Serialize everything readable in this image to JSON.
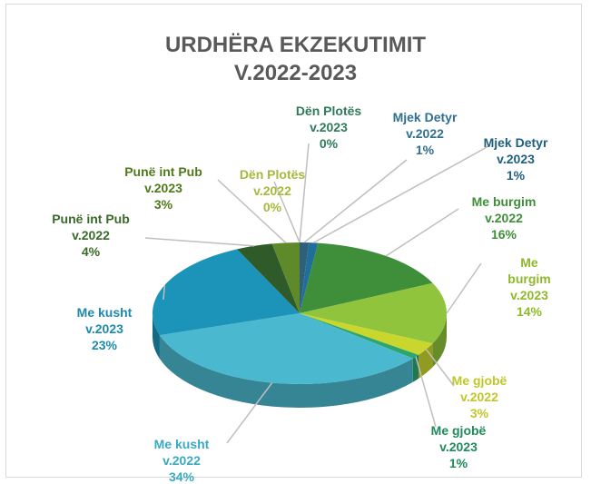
{
  "chart_data": {
    "type": "pie3d",
    "title": "URDHËRA EKZEKUTIMIT\nV.2022-2023",
    "categories": [
      "Mjek Detyr\nv.2022",
      "Mjek Detyr\nv.2023",
      "Me burgim\nv.2022",
      "Me burgim\nv.2023",
      "Me gjobë\nv.2022",
      "Me gjobë\nv.2023",
      "Me kusht\nv.2022",
      "Me kusht\nv.2023",
      "Punë int Pub\nv.2022",
      "Punë int Pub\nv.2023",
      "Dën Plotës\nv.2022",
      "Dën Plotës\nv.2023"
    ],
    "values": [
      1,
      1,
      16,
      14,
      3,
      1,
      34,
      23,
      4,
      3,
      0,
      0
    ],
    "value_labels": [
      "1%",
      "1%",
      "16%",
      "14%",
      "3%",
      "1%",
      "34%",
      "23%",
      "4%",
      "3%",
      "0%",
      "0%"
    ],
    "colors": [
      "#2f5f7a",
      "#1f6f9a",
      "#3f8f3a",
      "#8fc43c",
      "#c9d62e",
      "#2ea56e",
      "#4ab9cf",
      "#1c93b8",
      "#2f5a2a",
      "#5f8a2a",
      "#8aa33a",
      "#2e7a5a"
    ],
    "label_colors": [
      "#2f6f8f",
      "#1f5f7f",
      "#3f8f3a",
      "#8fb82c",
      "#c0c62a",
      "#1f8a5a",
      "#3aaac0",
      "#1c8ab0",
      "#3a6a2a",
      "#4f7a1a",
      "#a8b83a",
      "#2e7a5a"
    ]
  }
}
